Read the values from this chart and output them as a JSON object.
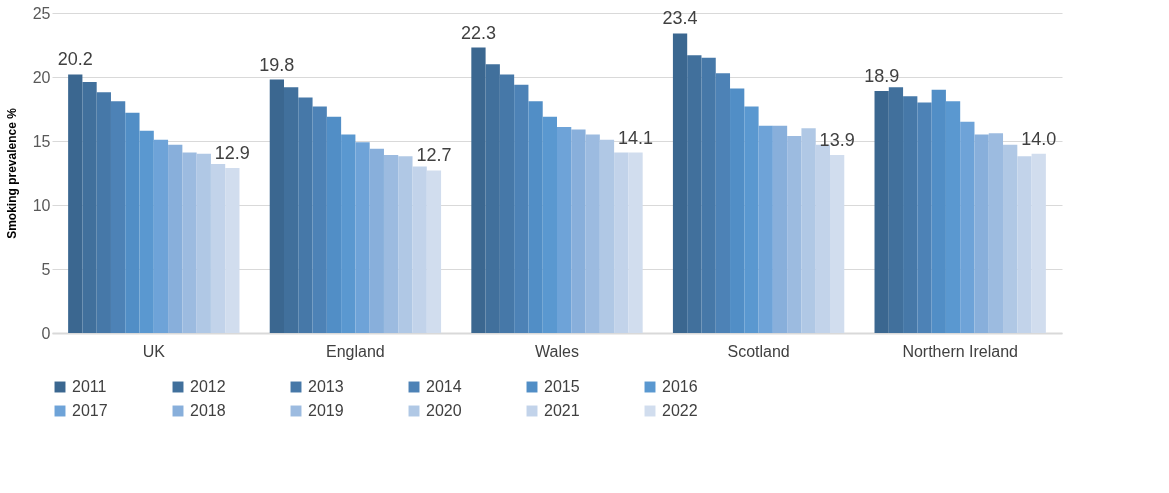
{
  "chart_data": {
    "type": "bar",
    "ylabel": "Smoking prevalence %",
    "categories": [
      "UK",
      "England",
      "Wales",
      "Scotland",
      "Northern Ireland"
    ],
    "ylim": [
      0,
      25
    ],
    "yticks": [
      0,
      5,
      10,
      15,
      20,
      25
    ],
    "grid": "y",
    "legend": "bottom",
    "series": [
      {
        "name": "2011",
        "color": "#3b6790",
        "values": [
          20.2,
          19.8,
          22.3,
          23.4,
          18.9
        ],
        "value_labels": [
          "20.2",
          "19.8",
          "22.3",
          "23.4",
          "18.9"
        ]
      },
      {
        "name": "2012",
        "color": "#41709c",
        "values": [
          19.6,
          19.2,
          21.0,
          21.7,
          19.2
        ]
      },
      {
        "name": "2013",
        "color": "#4678a8",
        "values": [
          18.8,
          18.4,
          20.2,
          21.5,
          18.5
        ]
      },
      {
        "name": "2014",
        "color": "#4d82b6",
        "values": [
          18.1,
          17.7,
          19.4,
          20.3,
          18.0
        ]
      },
      {
        "name": "2015",
        "color": "#518ec6",
        "values": [
          17.2,
          16.9,
          18.1,
          19.1,
          19.0
        ]
      },
      {
        "name": "2016",
        "color": "#5a98d0",
        "values": [
          15.8,
          15.5,
          16.9,
          17.7,
          18.1
        ]
      },
      {
        "name": "2017",
        "color": "#6ea3d8",
        "values": [
          15.1,
          14.9,
          16.1,
          16.2,
          16.5
        ]
      },
      {
        "name": "2018",
        "color": "#88afdb",
        "values": [
          14.7,
          14.4,
          15.9,
          16.2,
          15.5
        ]
      },
      {
        "name": "2019",
        "color": "#9cbbe0",
        "values": [
          14.1,
          13.9,
          15.5,
          15.4,
          15.6
        ]
      },
      {
        "name": "2020",
        "color": "#b0c8e5",
        "values": [
          14.0,
          13.8,
          15.1,
          16.0,
          14.7
        ]
      },
      {
        "name": "2021",
        "color": "#c2d3ea",
        "values": [
          13.2,
          13.0,
          14.1,
          14.7,
          13.8
        ]
      },
      {
        "name": "2022",
        "color": "#d1ddee",
        "values": [
          12.9,
          12.7,
          14.1,
          13.9,
          14.0
        ],
        "value_labels": [
          "12.9",
          "12.7",
          "14.1",
          "13.9",
          "14.0"
        ]
      }
    ]
  }
}
